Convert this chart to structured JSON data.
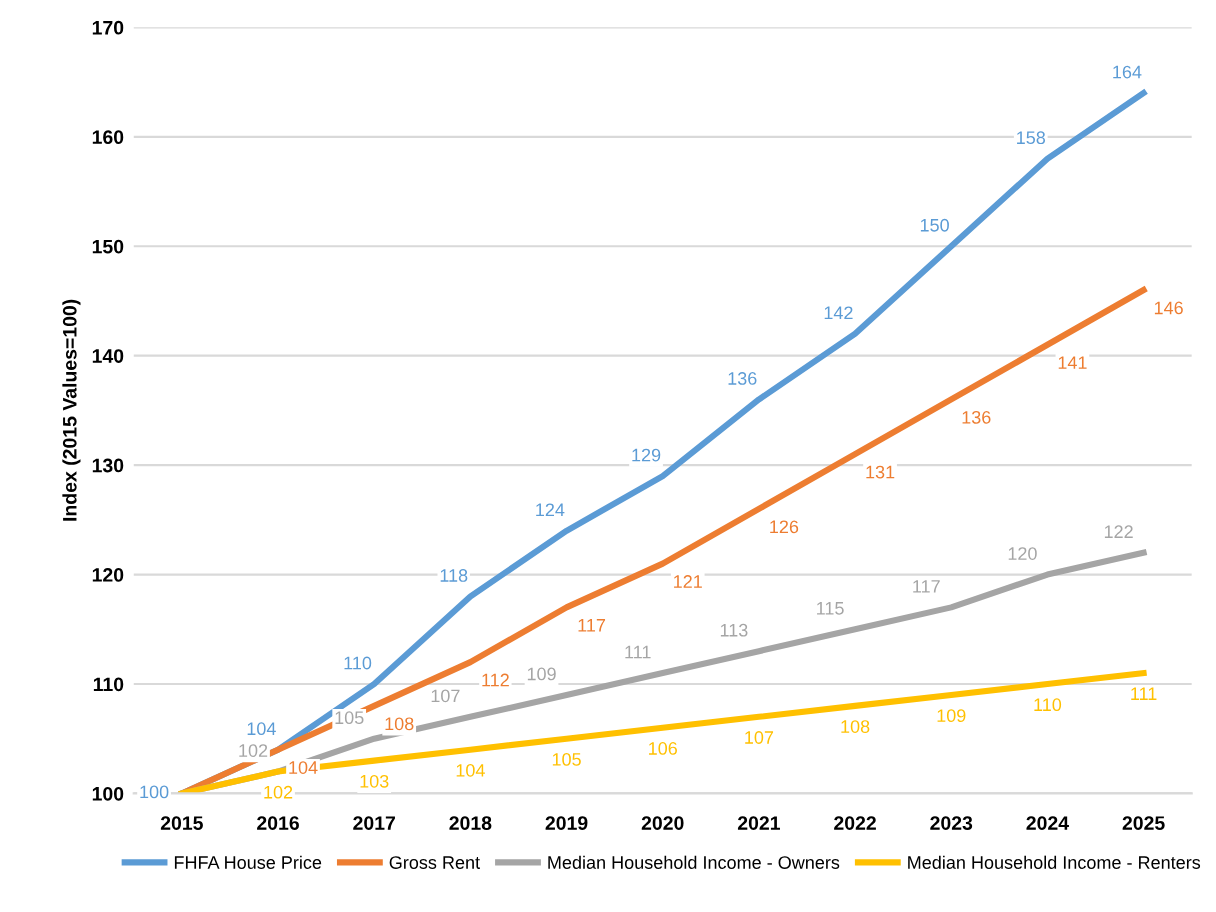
{
  "chart_data": {
    "type": "line",
    "ylabel": "Index (2015 Values=100)",
    "categories": [
      "2015",
      "2016",
      "2017",
      "2018",
      "2019",
      "2020",
      "2021",
      "2022",
      "2023",
      "2024",
      "2025"
    ],
    "series": [
      {
        "name": "FHFA House Price",
        "color": "#5b9bd5",
        "values": [
          100,
          104,
          110,
          118,
          124,
          129,
          136,
          142,
          150,
          158,
          164
        ],
        "value_labels": [
          "100",
          "104",
          "110",
          "118",
          "124",
          "129",
          "136",
          "142",
          "150",
          "158",
          "164"
        ]
      },
      {
        "name": "Gross Rent",
        "color": "#ed7d31",
        "values": [
          100,
          104,
          108,
          112,
          117,
          121,
          126,
          131,
          136,
          141,
          146
        ],
        "value_labels": [
          null,
          "104",
          "108",
          "112",
          "117",
          "121",
          "126",
          "131",
          "136",
          "141",
          "146"
        ]
      },
      {
        "name": "Median Household Income - Owners",
        "color": "#a5a5a5",
        "values": [
          100,
          102,
          105,
          107,
          109,
          111,
          113,
          115,
          117,
          120,
          122
        ],
        "value_labels": [
          null,
          "102",
          "105",
          "107",
          "109",
          "111",
          "113",
          "115",
          "117",
          "120",
          "122"
        ]
      },
      {
        "name": "Median Household Income - Renters",
        "color": "#ffc000",
        "values": [
          100,
          102,
          103,
          104,
          105,
          106,
          107,
          108,
          109,
          110,
          111
        ],
        "value_labels": [
          null,
          "102",
          "103",
          "104",
          "105",
          "106",
          "107",
          "108",
          "109",
          "110",
          "111"
        ]
      }
    ],
    "ylim": [
      100,
      170
    ],
    "yticks": [
      100,
      110,
      120,
      130,
      140,
      150,
      160,
      170
    ],
    "grid": "y",
    "legend": "bottom",
    "marker": "none",
    "line_style": "solid"
  }
}
